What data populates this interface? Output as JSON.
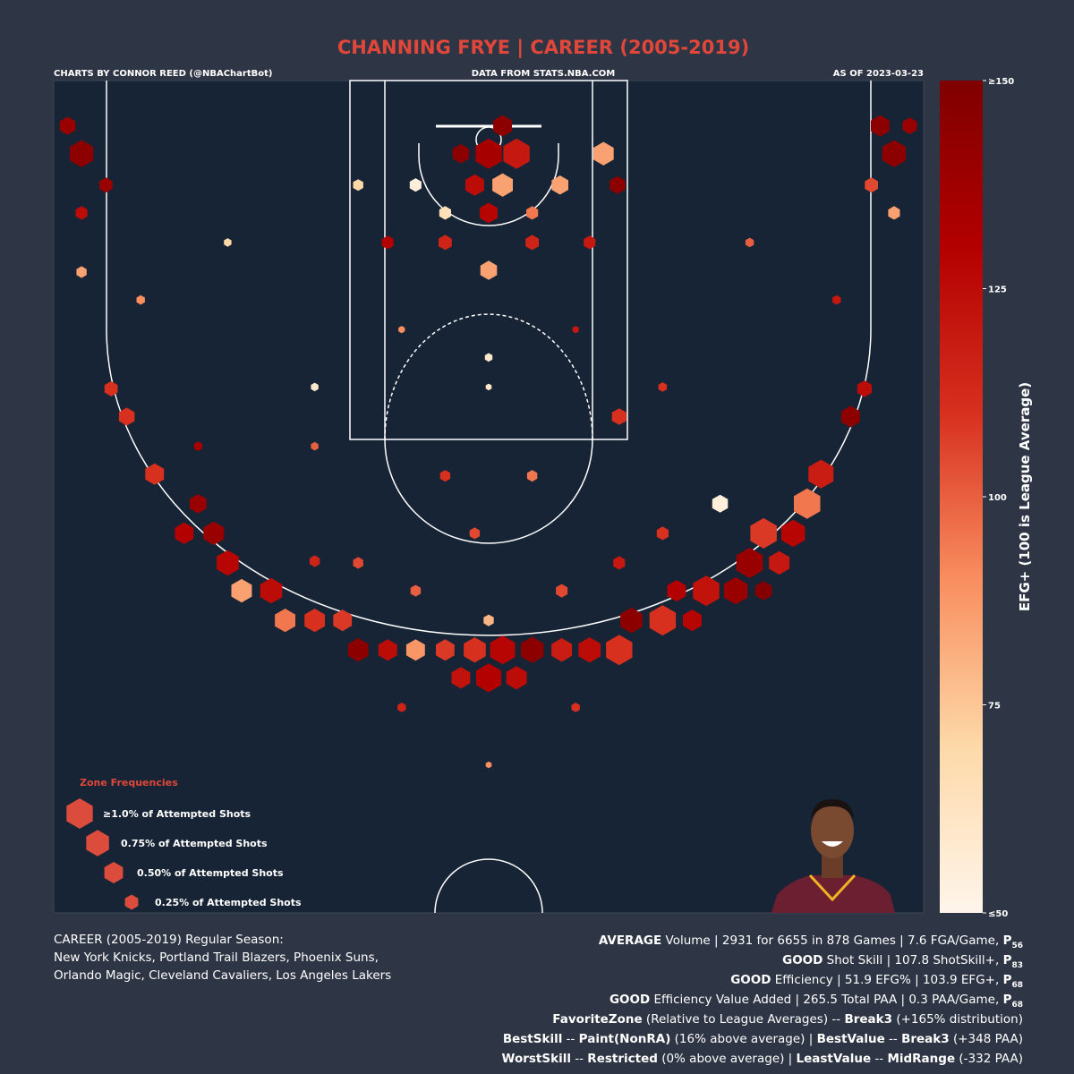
{
  "chart_data": {
    "type": "hexbin",
    "title": "CHANNING FRYE | CAREER (2005-2019)",
    "credits": "CHARTS BY CONNOR REED (@NBAChartBot)",
    "source": "DATA FROM STATS.NBA.COM",
    "as_of": "AS OF 2023-03-23",
    "xlim": [
      -250,
      250
    ],
    "ylim": [
      -26,
      452
    ],
    "hexes": [
      {
        "x": 0,
        "y": 16,
        "freq": 1.0,
        "efg": 135
      },
      {
        "x": 16,
        "y": 16,
        "freq": 1.0,
        "efg": 120
      },
      {
        "x": 8,
        "y": 0,
        "freq": 0.5,
        "efg": 145
      },
      {
        "x": 8,
        "y": 34,
        "freq": 0.6,
        "efg": 85
      },
      {
        "x": -8,
        "y": 34,
        "freq": 0.5,
        "efg": 125
      },
      {
        "x": 0,
        "y": 50,
        "freq": 0.45,
        "efg": 128
      },
      {
        "x": -16,
        "y": 16,
        "freq": 0.4,
        "efg": 145
      },
      {
        "x": -234,
        "y": 16,
        "freq": 0.8,
        "efg": 145
      },
      {
        "x": 233,
        "y": 16,
        "freq": 0.8,
        "efg": 145
      },
      {
        "x": -242,
        "y": 0,
        "freq": 0.35,
        "efg": 140
      },
      {
        "x": 225,
        "y": 0,
        "freq": 0.5,
        "efg": 145
      },
      {
        "x": 242,
        "y": 0,
        "freq": 0.3,
        "efg": 140
      },
      {
        "x": 66,
        "y": 16,
        "freq": 0.6,
        "efg": 85
      },
      {
        "x": 74,
        "y": 34,
        "freq": 0.35,
        "efg": 145
      },
      {
        "x": 41,
        "y": 34,
        "freq": 0.4,
        "efg": 85
      },
      {
        "x": 0,
        "y": 83,
        "freq": 0.4,
        "efg": 85
      },
      {
        "x": 191,
        "y": 200,
        "freq": 0.9,
        "efg": 118
      },
      {
        "x": 183,
        "y": 217,
        "freq": 1.0,
        "efg": 95
      },
      {
        "x": 158,
        "y": 234,
        "freq": 1.0,
        "efg": 108
      },
      {
        "x": 175,
        "y": 234,
        "freq": 0.8,
        "efg": 128
      },
      {
        "x": 150,
        "y": 251,
        "freq": 1.0,
        "efg": 140
      },
      {
        "x": 167,
        "y": 251,
        "freq": 0.6,
        "efg": 120
      },
      {
        "x": 125,
        "y": 267,
        "freq": 1.0,
        "efg": 122
      },
      {
        "x": 142,
        "y": 267,
        "freq": 0.8,
        "efg": 140
      },
      {
        "x": 158,
        "y": 267,
        "freq": 0.4,
        "efg": 148
      },
      {
        "x": 108,
        "y": 267,
        "freq": 0.5,
        "efg": 130
      },
      {
        "x": 100,
        "y": 284,
        "freq": 1.0,
        "efg": 110
      },
      {
        "x": 82,
        "y": 284,
        "freq": 0.7,
        "efg": 145
      },
      {
        "x": 117,
        "y": 284,
        "freq": 0.5,
        "efg": 128
      },
      {
        "x": 75,
        "y": 301,
        "freq": 1.0,
        "efg": 110
      },
      {
        "x": 58,
        "y": 301,
        "freq": 0.7,
        "efg": 125
      },
      {
        "x": 42,
        "y": 301,
        "freq": 0.6,
        "efg": 118
      },
      {
        "x": 25,
        "y": 301,
        "freq": 0.75,
        "efg": 145
      },
      {
        "x": 8,
        "y": 301,
        "freq": 0.9,
        "efg": 128
      },
      {
        "x": -8,
        "y": 301,
        "freq": 0.7,
        "efg": 110
      },
      {
        "x": -25,
        "y": 301,
        "freq": 0.5,
        "efg": 108
      },
      {
        "x": -42,
        "y": 301,
        "freq": 0.5,
        "efg": 88
      },
      {
        "x": -58,
        "y": 301,
        "freq": 0.5,
        "efg": 125
      },
      {
        "x": -75,
        "y": 301,
        "freq": 0.6,
        "efg": 145
      },
      {
        "x": 0,
        "y": 317,
        "freq": 0.9,
        "efg": 130
      },
      {
        "x": 16,
        "y": 317,
        "freq": 0.6,
        "efg": 125
      },
      {
        "x": -16,
        "y": 317,
        "freq": 0.5,
        "efg": 122
      },
      {
        "x": -100,
        "y": 284,
        "freq": 0.6,
        "efg": 110
      },
      {
        "x": -117,
        "y": 284,
        "freq": 0.6,
        "efg": 95
      },
      {
        "x": -84,
        "y": 284,
        "freq": 0.5,
        "efg": 108
      },
      {
        "x": -125,
        "y": 267,
        "freq": 0.7,
        "efg": 125
      },
      {
        "x": -142,
        "y": 267,
        "freq": 0.6,
        "efg": 85
      },
      {
        "x": -150,
        "y": 251,
        "freq": 0.7,
        "efg": 128
      },
      {
        "x": -158,
        "y": 234,
        "freq": 0.6,
        "efg": 140
      },
      {
        "x": -175,
        "y": 234,
        "freq": 0.5,
        "efg": 130
      },
      {
        "x": -167,
        "y": 217,
        "freq": 0.4,
        "efg": 140
      },
      {
        "x": -192,
        "y": 200,
        "freq": 0.5,
        "efg": 110
      },
      {
        "x": -208,
        "y": 167,
        "freq": 0.35,
        "efg": 110
      },
      {
        "x": 208,
        "y": 167,
        "freq": 0.5,
        "efg": 145
      },
      {
        "x": 216,
        "y": 151,
        "freq": 0.3,
        "efg": 125
      },
      {
        "x": 133,
        "y": 217,
        "freq": 0.35,
        "efg": 55
      },
      {
        "x": -217,
        "y": 151,
        "freq": 0.25,
        "efg": 110
      },
      {
        "x": 75,
        "y": 167,
        "freq": 0.3,
        "efg": 110
      },
      {
        "x": -200,
        "y": 100,
        "freq": 0.1,
        "efg": 90
      },
      {
        "x": -150,
        "y": 67,
        "freq": 0.08,
        "efg": 70
      },
      {
        "x": 150,
        "y": 67,
        "freq": 0.1,
        "efg": 100
      },
      {
        "x": 200,
        "y": 100,
        "freq": 0.1,
        "efg": 120
      },
      {
        "x": -100,
        "y": 150,
        "freq": 0.08,
        "efg": 60
      },
      {
        "x": 100,
        "y": 150,
        "freq": 0.1,
        "efg": 110
      },
      {
        "x": 0,
        "y": 150,
        "freq": 0.05,
        "efg": 60
      },
      {
        "x": 0,
        "y": 133,
        "freq": 0.08,
        "efg": 60
      },
      {
        "x": -50,
        "y": 117,
        "freq": 0.06,
        "efg": 90
      },
      {
        "x": 50,
        "y": 117,
        "freq": 0.06,
        "efg": 120
      },
      {
        "x": -234,
        "y": 50,
        "freq": 0.2,
        "efg": 125
      },
      {
        "x": 233,
        "y": 50,
        "freq": 0.2,
        "efg": 85
      },
      {
        "x": -234,
        "y": 84,
        "freq": 0.15,
        "efg": 85
      },
      {
        "x": -220,
        "y": 34,
        "freq": 0.25,
        "efg": 140
      },
      {
        "x": 220,
        "y": 34,
        "freq": 0.25,
        "efg": 105
      },
      {
        "x": -75,
        "y": 34,
        "freq": 0.15,
        "efg": 70
      },
      {
        "x": -42,
        "y": 34,
        "freq": 0.2,
        "efg": 55
      },
      {
        "x": -58,
        "y": 67,
        "freq": 0.2,
        "efg": 130
      },
      {
        "x": 58,
        "y": 67,
        "freq": 0.2,
        "efg": 120
      },
      {
        "x": -25,
        "y": 67,
        "freq": 0.25,
        "efg": 115
      },
      {
        "x": 25,
        "y": 67,
        "freq": 0.25,
        "efg": 115
      },
      {
        "x": -25,
        "y": 50,
        "freq": 0.2,
        "efg": 65
      },
      {
        "x": 25,
        "y": 50,
        "freq": 0.2,
        "efg": 95
      },
      {
        "x": -100,
        "y": 184,
        "freq": 0.08,
        "efg": 100
      },
      {
        "x": -167,
        "y": 184,
        "freq": 0.1,
        "efg": 135
      },
      {
        "x": -25,
        "y": 201,
        "freq": 0.15,
        "efg": 110
      },
      {
        "x": 25,
        "y": 201,
        "freq": 0.15,
        "efg": 95
      },
      {
        "x": -8,
        "y": 234,
        "freq": 0.15,
        "efg": 105
      },
      {
        "x": -42,
        "y": 267,
        "freq": 0.15,
        "efg": 100
      },
      {
        "x": 42,
        "y": 267,
        "freq": 0.2,
        "efg": 105
      },
      {
        "x": 0,
        "y": 284,
        "freq": 0.15,
        "efg": 80
      },
      {
        "x": -75,
        "y": 251,
        "freq": 0.15,
        "efg": 105
      },
      {
        "x": 75,
        "y": 251,
        "freq": 0.2,
        "efg": 120
      },
      {
        "x": -50,
        "y": 334,
        "freq": 0.1,
        "efg": 115
      },
      {
        "x": 50,
        "y": 334,
        "freq": 0.1,
        "efg": 110
      },
      {
        "x": 0,
        "y": 367,
        "freq": 0.05,
        "efg": 90
      },
      {
        "x": -100,
        "y": 250,
        "freq": 0.15,
        "efg": 115
      },
      {
        "x": 100,
        "y": 234,
        "freq": 0.2,
        "efg": 110
      }
    ],
    "colorbar": {
      "label": "EFG+ (100 is League Average)",
      "lim": [
        50,
        150
      ],
      "ticks": [
        {
          "value": 50,
          "label": "≤50"
        },
        75,
        100,
        125,
        {
          "value": 150,
          "label": "≥150"
        }
      ],
      "colors": [
        "#fff5eb",
        "#fdd9a8",
        "#f98e5f",
        "#d7301f",
        "#b30000",
        "#7f0000"
      ]
    },
    "size_legend": {
      "title": "Zone Frequencies",
      "color": "#dc4c3c",
      "entries": [
        {
          "value": 1.0,
          "label": "≥1.0% of Attempted Shots"
        },
        {
          "value": 0.75,
          "label": "0.75% of Attempted Shots"
        },
        {
          "value": 0.5,
          "label": "0.50% of Attempted Shots"
        },
        {
          "value": 0.25,
          "label": "0.25% of Attempted Shots"
        }
      ]
    }
  },
  "summary": {
    "left": [
      "CAREER (2005-2019) Regular Season:",
      "New York Knicks, Portland Trail Blazers, Phoenix Suns,",
      "Orlando Magic, Cleveland Cavaliers, Los Angeles Lakers"
    ],
    "right": [
      [
        {
          "text": "AVERAGE",
          "style": "bold"
        },
        {
          "text": " Volume | 2931 for 6655 in 878 Games | 7.6 FGA/Game, ",
          "style": "normal"
        },
        {
          "text": "P",
          "style": "bold"
        },
        {
          "text": "56",
          "style": "sub"
        }
      ],
      [
        {
          "text": "GOOD",
          "style": "bold"
        },
        {
          "text": " Shot Skill | 107.8 ShotSkill+, ",
          "style": "normal"
        },
        {
          "text": "P",
          "style": "bold"
        },
        {
          "text": "83",
          "style": "sub"
        }
      ],
      [
        {
          "text": "GOOD",
          "style": "bold"
        },
        {
          "text": " Efficiency | 51.9 EFG% | 103.9 EFG+, ",
          "style": "normal"
        },
        {
          "text": "P",
          "style": "bold"
        },
        {
          "text": "68",
          "style": "sub"
        }
      ],
      [
        {
          "text": "GOOD",
          "style": "bold"
        },
        {
          "text": " Efficiency Value Added | 265.5 Total PAA | 0.3 PAA/Game, ",
          "style": "normal"
        },
        {
          "text": "P",
          "style": "bold"
        },
        {
          "text": "68",
          "style": "sub"
        }
      ],
      [
        {
          "text": "FavoriteZone",
          "style": "bold"
        },
        {
          "text": " (Relative to League Averages) -- ",
          "style": "normal"
        },
        {
          "text": "Break3",
          "style": "bold"
        },
        {
          "text": " (+165% distribution)",
          "style": "normal"
        }
      ],
      [
        {
          "text": "BestSkill",
          "style": "bold"
        },
        {
          "text": " -- ",
          "style": "normal"
        },
        {
          "text": "Paint(NonRA)",
          "style": "bold"
        },
        {
          "text": " (16% above average) | ",
          "style": "normal"
        },
        {
          "text": "BestValue",
          "style": "bold"
        },
        {
          "text": " -- ",
          "style": "normal"
        },
        {
          "text": "Break3",
          "style": "bold"
        },
        {
          "text": " (+348 PAA)",
          "style": "normal"
        }
      ],
      [
        {
          "text": "WorstSkill",
          "style": "bold"
        },
        {
          "text": " -- ",
          "style": "normal"
        },
        {
          "text": "Restricted",
          "style": "bold"
        },
        {
          "text": " (0% above average) | ",
          "style": "normal"
        },
        {
          "text": "LeastValue",
          "style": "bold"
        },
        {
          "text": " -- ",
          "style": "normal"
        },
        {
          "text": "MidRange",
          "style": "bold"
        },
        {
          "text": " (-332 PAA)",
          "style": "normal"
        }
      ]
    ]
  }
}
